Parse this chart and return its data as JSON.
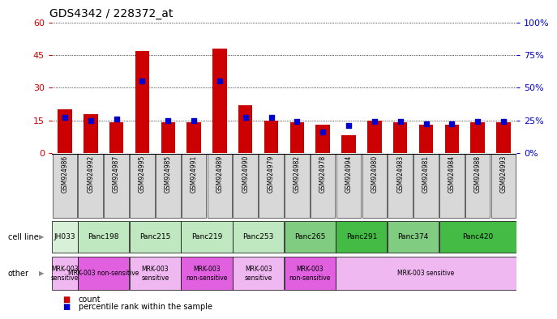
{
  "title": "GDS4342 / 228372_at",
  "samples": [
    "GSM924986",
    "GSM924992",
    "GSM924987",
    "GSM924995",
    "GSM924985",
    "GSM924991",
    "GSM924989",
    "GSM924990",
    "GSM924979",
    "GSM924982",
    "GSM924978",
    "GSM924994",
    "GSM924980",
    "GSM924983",
    "GSM924981",
    "GSM924984",
    "GSM924988",
    "GSM924993"
  ],
  "counts": [
    20,
    18,
    14,
    47,
    14,
    14,
    48,
    22,
    15,
    14,
    13,
    8,
    15,
    14,
    13,
    13,
    14,
    14
  ],
  "percentile_ranks": [
    27,
    25,
    26,
    55,
    25,
    25,
    55,
    27,
    27,
    24,
    16,
    21,
    24,
    24,
    22,
    22,
    24,
    24
  ],
  "cell_lines": [
    {
      "name": "JH033",
      "start": 0,
      "end": 1,
      "color": "#d8f0d8"
    },
    {
      "name": "Panc198",
      "start": 1,
      "end": 3,
      "color": "#c0e8c0"
    },
    {
      "name": "Panc215",
      "start": 3,
      "end": 5,
      "color": "#c0e8c0"
    },
    {
      "name": "Panc219",
      "start": 5,
      "end": 7,
      "color": "#c0e8c0"
    },
    {
      "name": "Panc253",
      "start": 7,
      "end": 9,
      "color": "#c0e8c0"
    },
    {
      "name": "Panc265",
      "start": 9,
      "end": 11,
      "color": "#80cc80"
    },
    {
      "name": "Panc291",
      "start": 11,
      "end": 13,
      "color": "#44bb44"
    },
    {
      "name": "Panc374",
      "start": 13,
      "end": 15,
      "color": "#80cc80"
    },
    {
      "name": "Panc420",
      "start": 15,
      "end": 18,
      "color": "#44bb44"
    }
  ],
  "other_annotations": [
    {
      "label": "MRK-003\nsensitive",
      "start": 0,
      "end": 1,
      "color": "#f0b8f0"
    },
    {
      "label": "MRK-003 non-sensitive",
      "start": 1,
      "end": 3,
      "color": "#e060e0"
    },
    {
      "label": "MRK-003\nsensitive",
      "start": 3,
      "end": 5,
      "color": "#f0b8f0"
    },
    {
      "label": "MRK-003\nnon-sensitive",
      "start": 5,
      "end": 7,
      "color": "#e060e0"
    },
    {
      "label": "MRK-003\nsensitive",
      "start": 7,
      "end": 9,
      "color": "#f0b8f0"
    },
    {
      "label": "MRK-003\nnon-sensitive",
      "start": 9,
      "end": 11,
      "color": "#e060e0"
    },
    {
      "label": "MRK-003 sensitive",
      "start": 11,
      "end": 18,
      "color": "#f0b8f0"
    }
  ],
  "ylim_left": [
    0,
    60
  ],
  "ylim_right": [
    0,
    100
  ],
  "yticks_left": [
    0,
    15,
    30,
    45,
    60
  ],
  "yticks_right": [
    0,
    25,
    50,
    75,
    100
  ],
  "bar_color": "#cc0000",
  "marker_color": "#0000cc",
  "background_color": "#ffffff",
  "title_fontsize": 10,
  "axis_label_color_left": "#cc0000",
  "axis_label_color_right": "#0000cc",
  "legend_items": [
    "count",
    "percentile rank within the sample"
  ],
  "sample_bg_color": "#d8d8d8"
}
